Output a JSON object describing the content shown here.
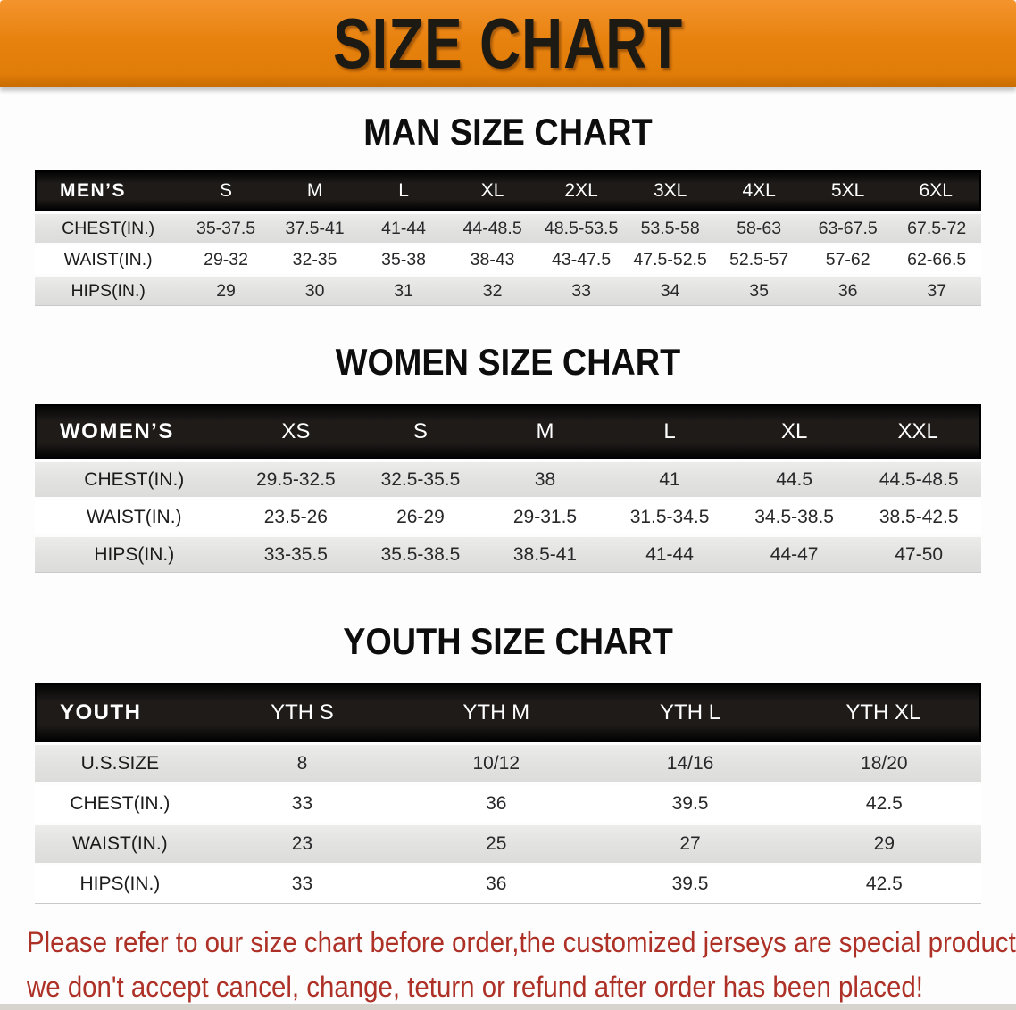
{
  "banner": {
    "title": "SIZE CHART",
    "bg_color": "#E8820F",
    "text_color": "#1D1A14"
  },
  "sections": [
    {
      "title": "MAN SIZE CHART",
      "header_label": "MEN’S",
      "sizes": [
        "S",
        "M",
        "L",
        "XL",
        "2XL",
        "3XL",
        "4XL",
        "5XL",
        "6XL"
      ],
      "rows": [
        {
          "label": "CHEST(IN.)",
          "values": [
            "35-37.5",
            "37.5-41",
            "41-44",
            "44-48.5",
            "48.5-53.5",
            "53.5-58",
            "58-63",
            "63-67.5",
            "67.5-72"
          ]
        },
        {
          "label": "WAIST(IN.)",
          "values": [
            "29-32",
            "32-35",
            "35-38",
            "38-43",
            "43-47.5",
            "47.5-52.5",
            "52.5-57",
            "57-62",
            "62-66.5"
          ]
        },
        {
          "label": "HIPS(IN.)",
          "values": [
            "29",
            "30",
            "31",
            "32",
            "33",
            "34",
            "35",
            "36",
            "37"
          ]
        }
      ]
    },
    {
      "title": "WOMEN SIZE CHART",
      "header_label": "WOMEN’S",
      "sizes": [
        "XS",
        "S",
        "M",
        "L",
        "XL",
        "XXL"
      ],
      "rows": [
        {
          "label": "CHEST(IN.)",
          "values": [
            "29.5-32.5",
            "32.5-35.5",
            "38",
            "41",
            "44.5",
            "44.5-48.5"
          ]
        },
        {
          "label": "WAIST(IN.)",
          "values": [
            "23.5-26",
            "26-29",
            "29-31.5",
            "31.5-34.5",
            "34.5-38.5",
            "38.5-42.5"
          ]
        },
        {
          "label": "HIPS(IN.)",
          "values": [
            "33-35.5",
            "35.5-38.5",
            "38.5-41",
            "41-44",
            "44-47",
            "47-50"
          ]
        }
      ]
    },
    {
      "title": "YOUTH SIZE CHART",
      "header_label": "YOUTH",
      "sizes": [
        "YTH S",
        "YTH M",
        "YTH L",
        "YTH XL"
      ],
      "rows": [
        {
          "label": "U.S.SIZE",
          "values": [
            "8",
            "10/12",
            "14/16",
            "18/20"
          ]
        },
        {
          "label": "CHEST(IN.)",
          "values": [
            "33",
            "36",
            "39.5",
            "42.5"
          ]
        },
        {
          "label": "WAIST(IN.)",
          "values": [
            "23",
            "25",
            "27",
            "29"
          ]
        },
        {
          "label": "HIPS(IN.)",
          "values": [
            "33",
            "36",
            "39.5",
            "42.5"
          ]
        }
      ]
    }
  ],
  "notice": {
    "color": "#AE3127",
    "lines": [
      "Please refer to our size chart before order,the customized jerseys are special products,",
      "we don't accept cancel, change, teturn or refund after order has been placed!"
    ]
  }
}
